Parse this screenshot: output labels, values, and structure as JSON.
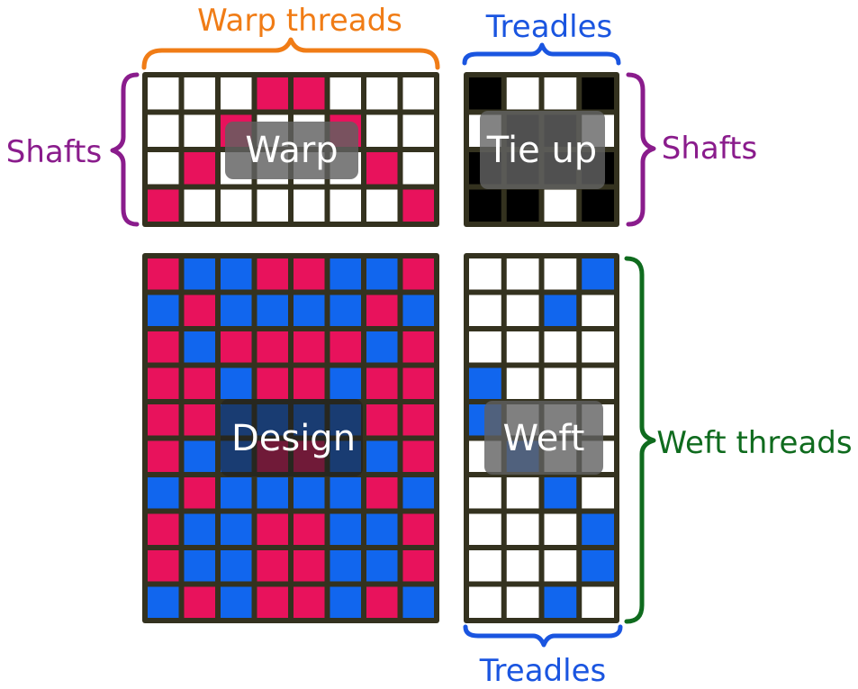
{
  "labels": {
    "warp_threads": "Warp threads",
    "treadles_top": "Treadles",
    "shafts_left": "Shafts",
    "shafts_right": "Shafts",
    "weft_threads": "Weft threads",
    "treadles_bottom": "Treadles"
  },
  "overlays": {
    "warp": "Warp",
    "tieup": "Tie up",
    "design": "Design",
    "weft": "Weft"
  },
  "colors": {
    "pink": "#e8125c",
    "blue": "#1166ee",
    "black": "#000000",
    "white": "#ffffff",
    "grid_border": "#34321f",
    "orange": "#f07c16",
    "label_blue": "#1a55e0",
    "purple": "#8a1c8c",
    "green": "#0f6b1e"
  },
  "grids": {
    "warp": [
      "WWWPPWWW",
      "WWPWWPWW",
      "WPWWWWPW",
      "PWWWWWWP"
    ],
    "tieup": [
      "KWWK",
      "WKKW",
      "KKKK",
      "KKWK"
    ],
    "design": [
      "PBBPPBBP",
      "BPBBBBPB",
      "PBPPPPBP",
      "PPBPPBPP",
      "PPBBBBPP",
      "PBBPPBBP",
      "BPBBBBPB",
      "PBBPPBBP",
      "PBBPPBBP",
      "BPBPPBPB"
    ],
    "weft": [
      "WWWB",
      "WWBW",
      "WWWW",
      "BWWW",
      "BWWW",
      "WBWW",
      "WWBW",
      "WWWB",
      "WWWB",
      "WWBW"
    ]
  }
}
